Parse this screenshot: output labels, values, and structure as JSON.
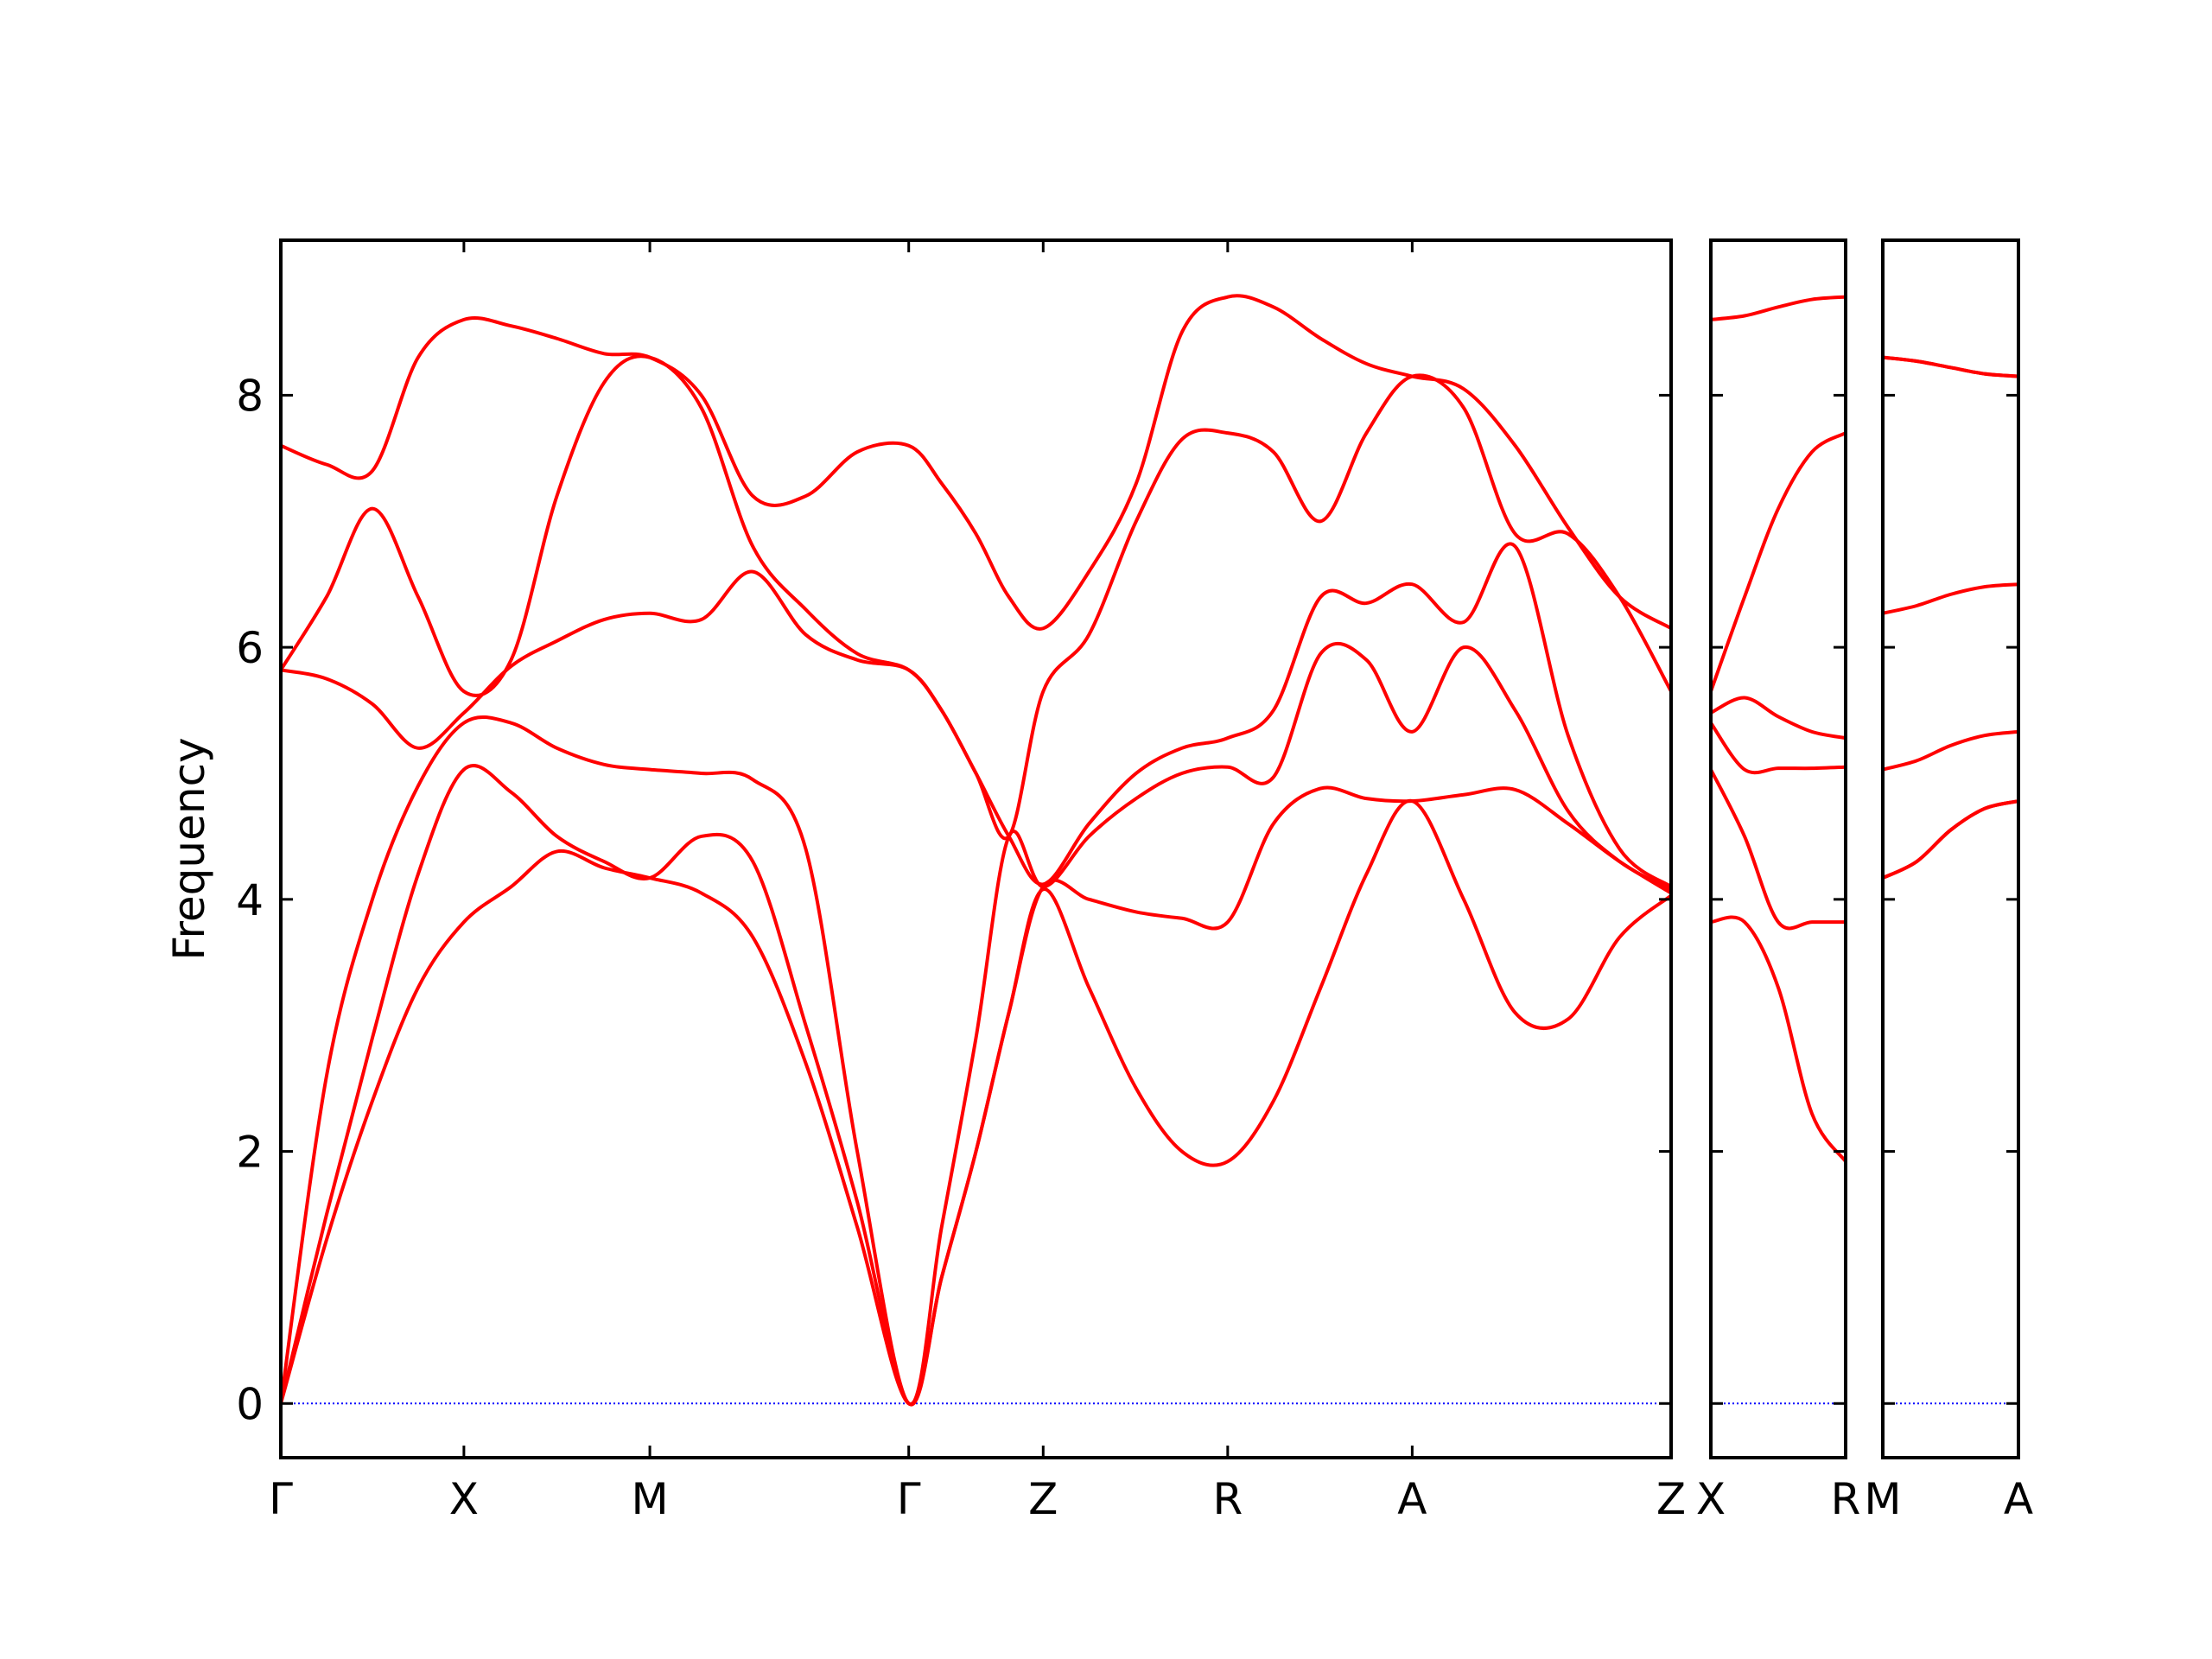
{
  "chart_data": [
    {
      "type": "line",
      "ylabel": "Frequency",
      "show_ytick_labels": true,
      "xlim": [
        0,
        9.72
      ],
      "ylim": [
        -0.43,
        9.23
      ],
      "yticks": [
        0,
        2,
        4,
        6,
        8
      ],
      "xticks": [
        {
          "value": 0,
          "label": "Γ"
        },
        {
          "value": 1.28,
          "label": "X"
        },
        {
          "value": 2.58,
          "label": "M"
        },
        {
          "value": 4.39,
          "label": "Γ"
        },
        {
          "value": 5.33,
          "label": "Z"
        },
        {
          "value": 6.62,
          "label": "R"
        },
        {
          "value": 7.91,
          "label": "A"
        },
        {
          "value": 9.72,
          "label": "Z"
        }
      ],
      "hline": 0,
      "hline_color": "#0000ff",
      "x": [
        0,
        0.32,
        0.64,
        0.96,
        1.28,
        1.61,
        1.93,
        2.26,
        2.58,
        2.94,
        3.3,
        3.67,
        4.03,
        4.39,
        4.62,
        4.86,
        5.09,
        5.33,
        5.65,
        5.98,
        6.3,
        6.62,
        6.94,
        7.27,
        7.59,
        7.91,
        8.27,
        8.63,
        9.0,
        9.36,
        9.72
      ],
      "series": [
        {
          "color": "#ff0000",
          "values": [
            0,
            1.3,
            2.4,
            3.3,
            3.82,
            4.1,
            4.38,
            4.25,
            4.17,
            4.05,
            3.7,
            2.7,
            1.4,
            0,
            1.0,
            2.0,
            3.1,
            4.08,
            3.3,
            2.5,
            2.0,
            1.92,
            2.4,
            3.3,
            4.2,
            4.78,
            4.0,
            3.1,
            3.05,
            3.7,
            4.03
          ]
        },
        {
          "color": "#ff0000",
          "values": [
            0,
            1.5,
            2.9,
            4.2,
            5.03,
            4.85,
            4.5,
            4.3,
            4.17,
            4.5,
            4.3,
            3.0,
            1.6,
            0,
            1.0,
            2.0,
            3.1,
            4.1,
            4.0,
            3.9,
            3.85,
            3.82,
            4.6,
            4.88,
            4.8,
            4.78,
            4.83,
            4.87,
            4.6,
            4.3,
            4.05
          ]
        },
        {
          "color": "#ff0000",
          "values": [
            0,
            2.6,
            4.0,
            4.9,
            5.4,
            5.4,
            5.2,
            5.07,
            5.03,
            5.0,
            4.95,
            4.4,
            2.0,
            0,
            1.4,
            2.9,
            4.5,
            4.1,
            4.5,
            4.8,
            5.0,
            5.05,
            4.97,
            5.95,
            5.9,
            5.33,
            6.0,
            5.5,
            4.7,
            4.3,
            4.08
          ]
        },
        {
          "color": "#ff0000",
          "values": [
            5.82,
            5.75,
            5.55,
            5.2,
            5.48,
            5.85,
            6.05,
            6.22,
            6.27,
            6.22,
            6.6,
            6.1,
            5.9,
            5.82,
            5.5,
            5.0,
            4.5,
            4.12,
            4.6,
            5.0,
            5.2,
            5.28,
            5.5,
            6.4,
            6.35,
            6.5,
            6.2,
            6.8,
            5.3,
            4.4,
            4.1
          ]
        },
        {
          "color": "#ff0000",
          "values": [
            5.82,
            6.4,
            7.1,
            6.4,
            5.65,
            5.9,
            7.2,
            8.1,
            8.3,
            7.9,
            6.8,
            6.3,
            5.95,
            5.82,
            5.5,
            5.0,
            4.5,
            5.65,
            6.1,
            7.0,
            7.65,
            7.7,
            7.55,
            7.0,
            7.7,
            8.15,
            7.9,
            6.9,
            6.9,
            6.4,
            5.65
          ]
        },
        {
          "color": "#ff0000",
          "values": [
            7.6,
            7.45,
            7.4,
            8.3,
            8.6,
            8.55,
            8.45,
            8.33,
            8.3,
            8.0,
            7.2,
            7.2,
            7.55,
            7.6,
            7.3,
            6.9,
            6.4,
            6.15,
            6.6,
            7.3,
            8.5,
            8.78,
            8.7,
            8.45,
            8.25,
            8.15,
            8.05,
            7.6,
            6.95,
            6.4,
            6.15
          ]
        }
      ]
    },
    {
      "type": "line",
      "show_ytick_labels": false,
      "xlim": [
        0,
        0.94
      ],
      "ylim": [
        -0.43,
        9.23
      ],
      "yticks": [
        0,
        2,
        4,
        6,
        8
      ],
      "xticks": [
        {
          "value": 0,
          "label": "X"
        },
        {
          "value": 0.94,
          "label": "R"
        }
      ],
      "hline": 0,
      "hline_color": "#0000ff",
      "x": [
        0,
        0.235,
        0.47,
        0.705,
        0.94
      ],
      "series": [
        {
          "color": "#ff0000",
          "values": [
            3.82,
            3.82,
            3.3,
            2.3,
            1.92
          ]
        },
        {
          "color": "#ff0000",
          "values": [
            5.03,
            4.5,
            3.82,
            3.82,
            3.82
          ]
        },
        {
          "color": "#ff0000",
          "values": [
            5.4,
            5.03,
            5.04,
            5.04,
            5.05
          ]
        },
        {
          "color": "#ff0000",
          "values": [
            5.48,
            5.6,
            5.45,
            5.33,
            5.28
          ]
        },
        {
          "color": "#ff0000",
          "values": [
            5.65,
            6.4,
            7.1,
            7.55,
            7.7
          ]
        },
        {
          "color": "#ff0000",
          "values": [
            8.6,
            8.63,
            8.7,
            8.76,
            8.78
          ]
        }
      ]
    },
    {
      "type": "line",
      "show_ytick_labels": false,
      "xlim": [
        0,
        0.95
      ],
      "ylim": [
        -0.43,
        9.23
      ],
      "yticks": [
        0,
        2,
        4,
        6,
        8
      ],
      "xticks": [
        {
          "value": 0,
          "label": "M"
        },
        {
          "value": 0.95,
          "label": "A"
        }
      ],
      "hline": 0,
      "hline_color": "#0000ff",
      "x": [
        0,
        0.2375,
        0.475,
        0.7125,
        0.95
      ],
      "series": [
        {
          "color": "#ff0000",
          "values": [
            4.17,
            4.3,
            4.55,
            4.72,
            4.78
          ]
        },
        {
          "color": "#ff0000",
          "values": [
            4.17,
            4.3,
            4.55,
            4.72,
            4.78
          ]
        },
        {
          "color": "#ff0000",
          "values": [
            5.03,
            5.1,
            5.22,
            5.3,
            5.33
          ]
        },
        {
          "color": "#ff0000",
          "values": [
            6.27,
            6.33,
            6.42,
            6.48,
            6.5
          ]
        },
        {
          "color": "#ff0000",
          "values": [
            8.3,
            8.27,
            8.22,
            8.17,
            8.15
          ]
        },
        {
          "color": "#ff0000",
          "values": [
            8.3,
            8.27,
            8.22,
            8.17,
            8.15
          ]
        }
      ]
    }
  ]
}
